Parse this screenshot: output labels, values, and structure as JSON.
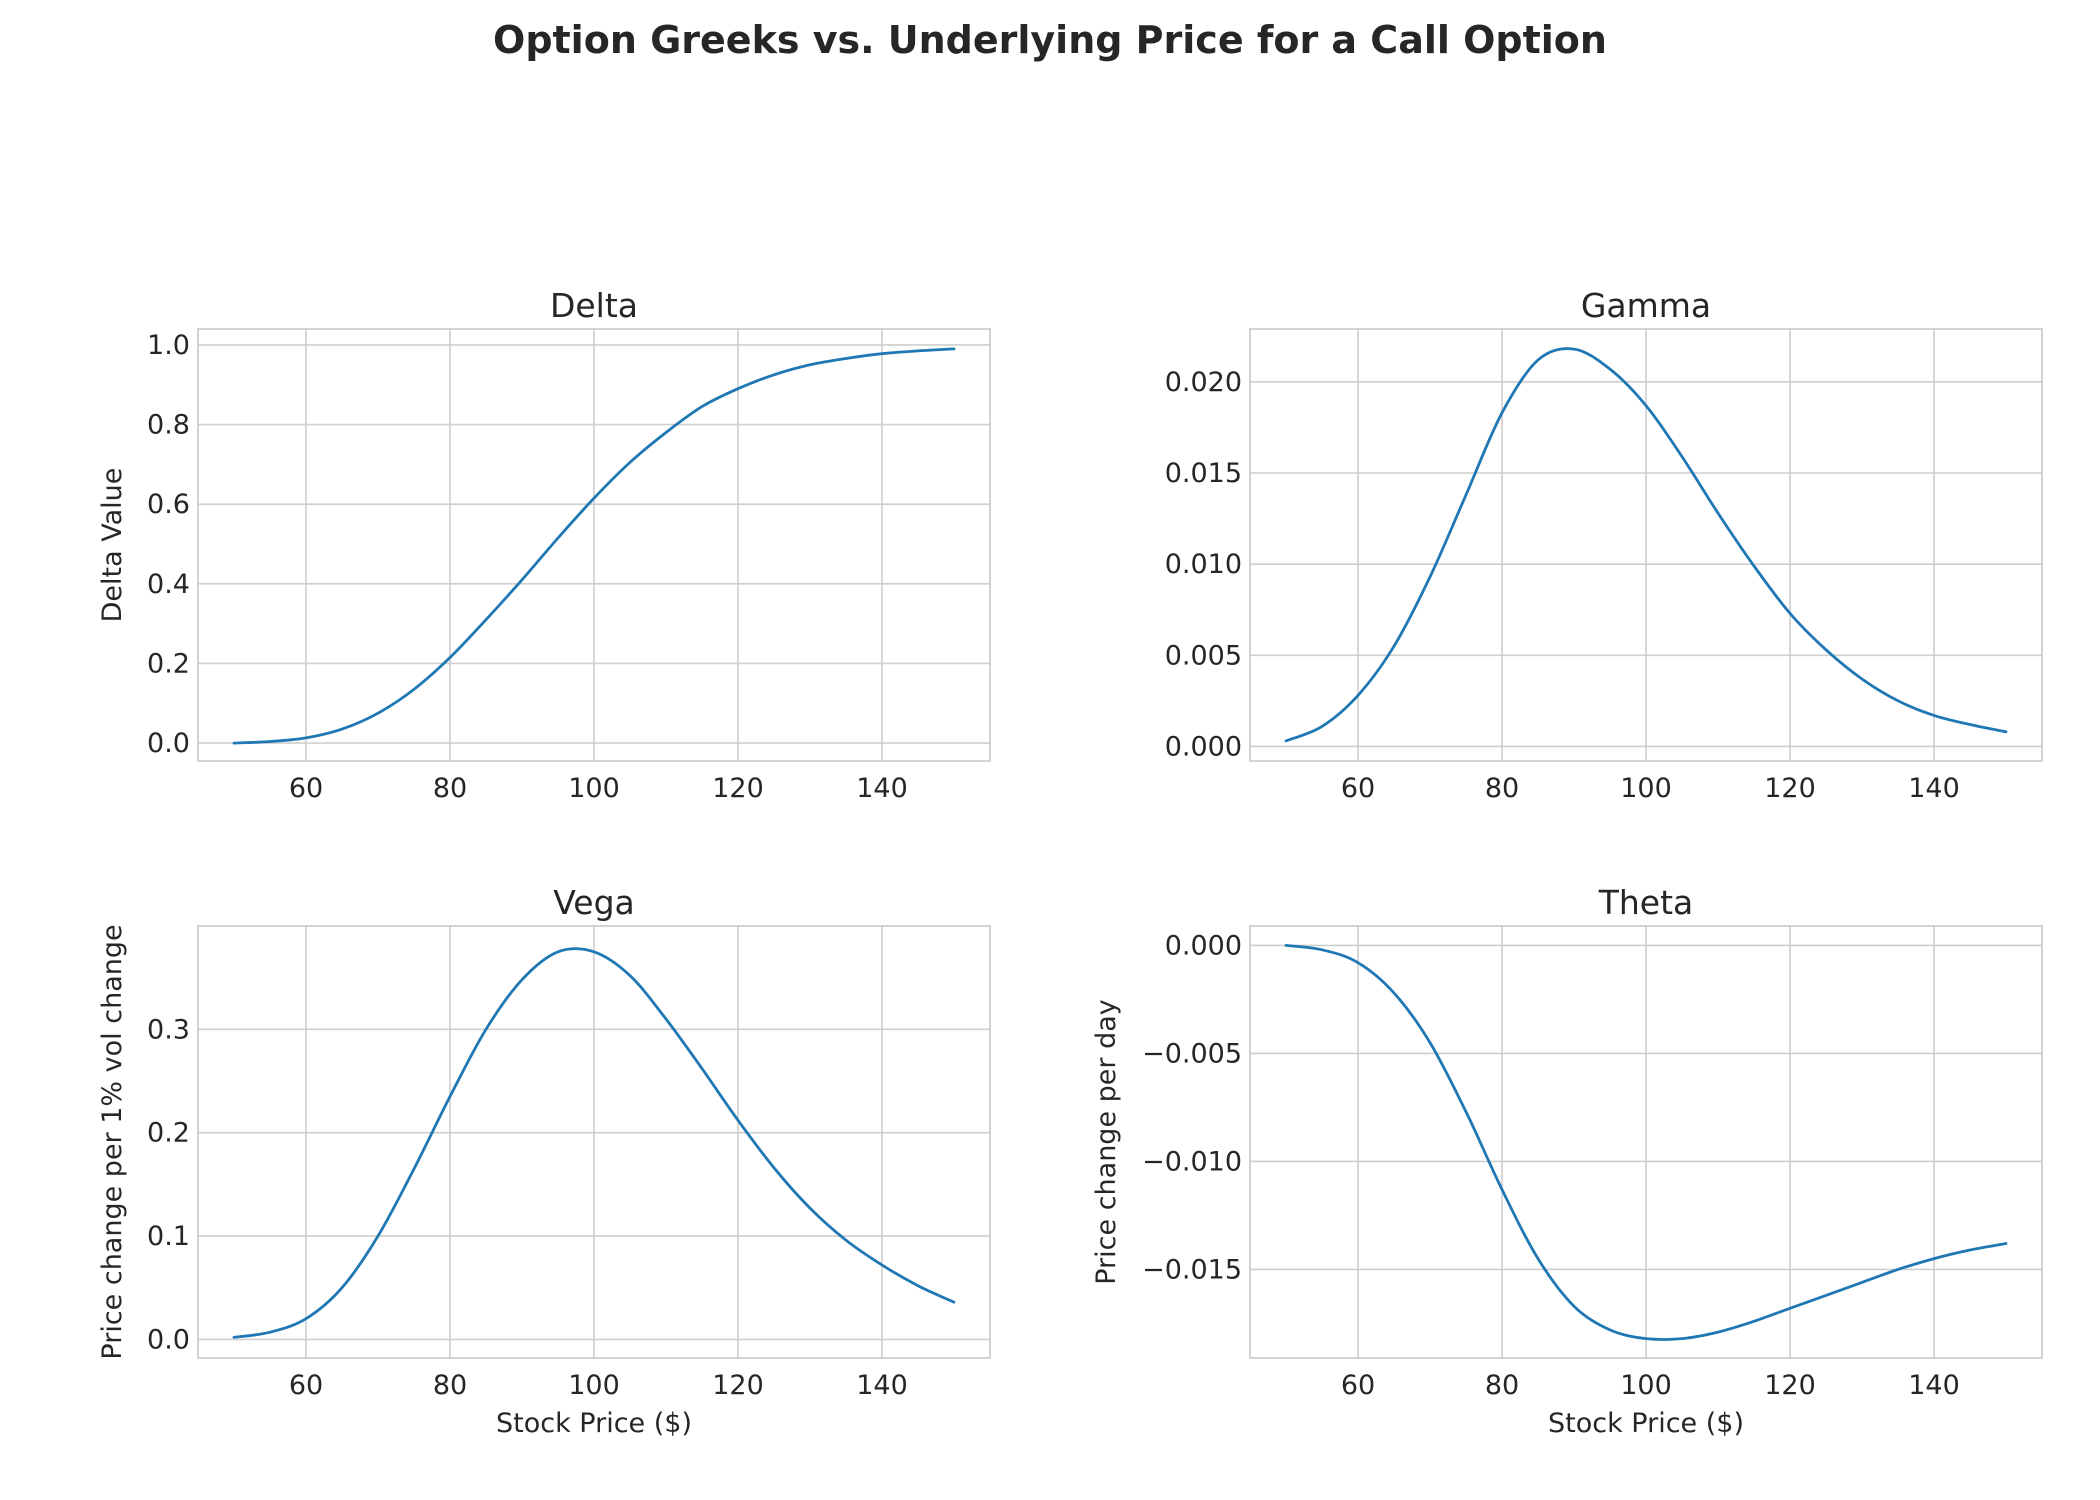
{
  "figure": {
    "title": "Option Greeks vs. Underlying Price for a Call Option",
    "line_color": "#1f77b4",
    "grid_color": "#cfcfcf",
    "spine_color": "#c8c8c8",
    "background": "#ffffff"
  },
  "chart_data": [
    {
      "type": "line",
      "title": "Delta",
      "xlabel": "",
      "ylabel": "Delta Value",
      "xlim": [
        45,
        155
      ],
      "ylim": [
        -0.045,
        1.04
      ],
      "xticks": [
        60,
        80,
        100,
        120,
        140
      ],
      "xtick_labels": [
        "60",
        "80",
        "100",
        "120",
        "140"
      ],
      "yticks": [
        0.0,
        0.2,
        0.4,
        0.6,
        0.8,
        1.0
      ],
      "ytick_labels": [
        "0.0",
        "0.2",
        "0.4",
        "0.6",
        "0.8",
        "1.0"
      ],
      "grid": true,
      "series": [
        {
          "x": [
            50,
            55,
            60,
            65,
            70,
            75,
            80,
            85,
            90,
            95,
            100,
            105,
            110,
            115,
            120,
            125,
            130,
            135,
            140,
            145,
            150
          ],
          "y": [
            0.0,
            0.004,
            0.013,
            0.035,
            0.075,
            0.135,
            0.215,
            0.31,
            0.41,
            0.515,
            0.615,
            0.705,
            0.78,
            0.845,
            0.89,
            0.925,
            0.95,
            0.966,
            0.978,
            0.985,
            0.99
          ]
        }
      ]
    },
    {
      "type": "line",
      "title": "Gamma",
      "xlabel": "",
      "ylabel": "",
      "xlim": [
        45,
        155
      ],
      "ylim": [
        -0.0008,
        0.0229
      ],
      "xticks": [
        60,
        80,
        100,
        120,
        140
      ],
      "xtick_labels": [
        "60",
        "80",
        "100",
        "120",
        "140"
      ],
      "yticks": [
        0.0,
        0.005,
        0.01,
        0.015,
        0.02
      ],
      "ytick_labels": [
        "0.000",
        "0.005",
        "0.010",
        "0.015",
        "0.020"
      ],
      "grid": true,
      "series": [
        {
          "x": [
            50,
            55,
            60,
            65,
            70,
            75,
            80,
            85,
            90,
            95,
            100,
            105,
            110,
            115,
            120,
            125,
            130,
            135,
            140,
            145,
            150
          ],
          "y": [
            0.0003,
            0.0011,
            0.0028,
            0.0055,
            0.0093,
            0.0138,
            0.0183,
            0.0212,
            0.0218,
            0.0207,
            0.0187,
            0.0159,
            0.0128,
            0.0099,
            0.0073,
            0.0053,
            0.0037,
            0.0025,
            0.0017,
            0.0012,
            0.0008
          ]
        }
      ]
    },
    {
      "type": "line",
      "title": "Vega",
      "xlabel": "Stock Price ($)",
      "ylabel": "Price change per 1% vol change",
      "xlim": [
        45,
        155
      ],
      "ylim": [
        -0.018,
        0.4
      ],
      "xticks": [
        60,
        80,
        100,
        120,
        140
      ],
      "xtick_labels": [
        "60",
        "80",
        "100",
        "120",
        "140"
      ],
      "yticks": [
        0.0,
        0.1,
        0.2,
        0.3
      ],
      "ytick_labels": [
        "0.0",
        "0.1",
        "0.2",
        "0.3"
      ],
      "grid": true,
      "series": [
        {
          "x": [
            50,
            55,
            60,
            65,
            70,
            75,
            80,
            85,
            90,
            95,
            100,
            105,
            110,
            115,
            120,
            125,
            130,
            135,
            140,
            145,
            150
          ],
          "y": [
            0.002,
            0.007,
            0.02,
            0.05,
            0.1,
            0.165,
            0.235,
            0.3,
            0.348,
            0.375,
            0.375,
            0.352,
            0.31,
            0.262,
            0.212,
            0.166,
            0.127,
            0.096,
            0.072,
            0.052,
            0.036
          ]
        }
      ]
    },
    {
      "type": "line",
      "title": "Theta",
      "xlabel": "Stock Price ($)",
      "ylabel": "Price change per day",
      "xlim": [
        45,
        155
      ],
      "ylim": [
        -0.0191,
        0.0009
      ],
      "xticks": [
        60,
        80,
        100,
        120,
        140
      ],
      "xtick_labels": [
        "60",
        "80",
        "100",
        "120",
        "140"
      ],
      "yticks": [
        0.0,
        -0.005,
        -0.01,
        -0.015
      ],
      "ytick_labels": [
        "0.000",
        "−0.005",
        "−0.010",
        "−0.015"
      ],
      "grid": true,
      "series": [
        {
          "x": [
            50,
            55,
            60,
            65,
            70,
            75,
            80,
            85,
            90,
            95,
            100,
            105,
            110,
            115,
            120,
            125,
            130,
            135,
            140,
            145,
            150
          ],
          "y": [
            0.0,
            -0.0002,
            -0.0008,
            -0.0022,
            -0.0045,
            -0.0077,
            -0.0113,
            -0.0145,
            -0.0167,
            -0.0178,
            -0.0182,
            -0.0182,
            -0.0179,
            -0.0174,
            -0.0168,
            -0.0162,
            -0.0156,
            -0.015,
            -0.0145,
            -0.0141,
            -0.0138
          ]
        }
      ]
    }
  ]
}
